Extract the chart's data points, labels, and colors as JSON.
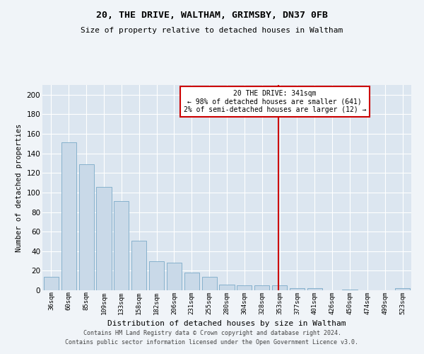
{
  "title": "20, THE DRIVE, WALTHAM, GRIMSBY, DN37 0FB",
  "subtitle": "Size of property relative to detached houses in Waltham",
  "xlabel": "Distribution of detached houses by size in Waltham",
  "ylabel": "Number of detached properties",
  "footer_line1": "Contains HM Land Registry data © Crown copyright and database right 2024.",
  "footer_line2": "Contains public sector information licensed under the Open Government Licence v3.0.",
  "categories": [
    "36sqm",
    "60sqm",
    "85sqm",
    "109sqm",
    "133sqm",
    "158sqm",
    "182sqm",
    "206sqm",
    "231sqm",
    "255sqm",
    "280sqm",
    "304sqm",
    "328sqm",
    "353sqm",
    "377sqm",
    "401sqm",
    "426sqm",
    "450sqm",
    "474sqm",
    "499sqm",
    "523sqm"
  ],
  "values": [
    14,
    151,
    129,
    106,
    91,
    51,
    30,
    28,
    18,
    14,
    6,
    5,
    5,
    5,
    2,
    2,
    0,
    1,
    0,
    0,
    2
  ],
  "bar_color": "#c9d9e8",
  "bar_edge_color": "#7aaac8",
  "vline_color": "#cc0000",
  "annotation_text": "20 THE DRIVE: 341sqm\n← 98% of detached houses are smaller (641)\n2% of semi-detached houses are larger (12) →",
  "annotation_box_color": "#cc0000",
  "ylim": [
    0,
    210
  ],
  "yticks": [
    0,
    20,
    40,
    60,
    80,
    100,
    120,
    140,
    160,
    180,
    200
  ],
  "fig_bg_color": "#f0f4f8",
  "plot_bg_color": "#dce6f0",
  "grid_color": "#ffffff"
}
